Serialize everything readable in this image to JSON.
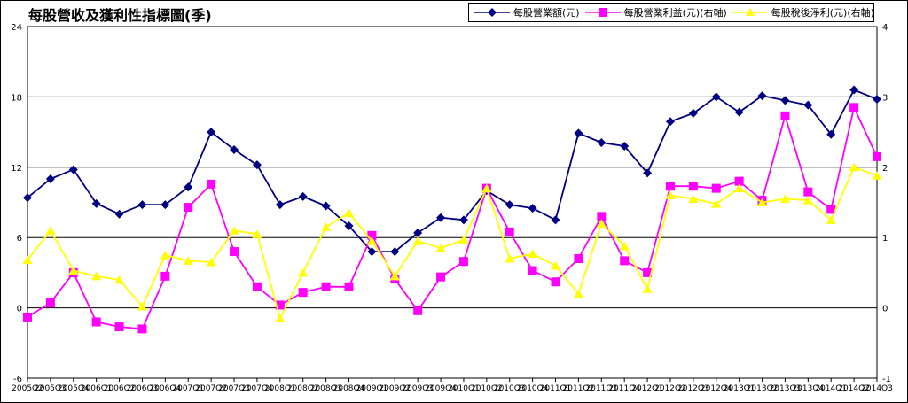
{
  "chart_data": {
    "type": "line",
    "title": "每股營收及獲利性指標圖(季)",
    "categories": [
      "2005Q2",
      "2005Q3",
      "2005Q4",
      "2006Q1",
      "2006Q2",
      "2006Q3",
      "2006Q4",
      "2007Q1",
      "2007Q2",
      "2007Q3",
      "2007Q4",
      "2008Q1",
      "2008Q2",
      "2008Q3",
      "2008Q4",
      "2009Q1",
      "2009Q2",
      "2009Q3",
      "2009Q4",
      "2010Q1",
      "2010Q2",
      "2010Q3",
      "2010Q4",
      "2011Q1",
      "2011Q2",
      "2011Q3",
      "2011Q4",
      "2012Q1",
      "2012Q2",
      "2012Q3",
      "2012Q4",
      "2013Q1",
      "2013Q2",
      "2013Q3",
      "2013Q4",
      "2014Q1",
      "2014Q2",
      "2014Q3"
    ],
    "left_axis": {
      "ylim": [
        -6,
        24
      ],
      "ticks": [
        "-6",
        "0",
        "6",
        "12",
        "18",
        "24"
      ]
    },
    "right_axis": {
      "ylim": [
        -1,
        4
      ],
      "ticks": [
        "-1",
        "0",
        "1",
        "2",
        "3",
        "4"
      ]
    },
    "grid": "horizontal",
    "legend_position": "top-right",
    "series": [
      {
        "name": "每股營業額(元)",
        "axis": "left",
        "color": "#000080",
        "marker": "diamond",
        "values": [
          9.4,
          11.0,
          11.8,
          8.9,
          8.0,
          8.8,
          8.8,
          10.3,
          15.0,
          13.5,
          12.2,
          8.8,
          9.5,
          8.7,
          7.0,
          4.8,
          4.8,
          6.4,
          7.7,
          7.5,
          10.0,
          8.8,
          8.5,
          7.5,
          14.9,
          14.1,
          13.8,
          11.5,
          15.9,
          16.6,
          18.0,
          16.7,
          18.1,
          17.7,
          17.3,
          14.8,
          18.6,
          17.8
        ]
      },
      {
        "name": "每股營業利益(元)(右軸)",
        "axis": "right",
        "color": "#FF00FF",
        "marker": "square",
        "values": [
          -0.13,
          0.07,
          0.5,
          -0.2,
          -0.27,
          -0.3,
          0.45,
          1.43,
          1.76,
          0.8,
          0.3,
          0.04,
          0.22,
          0.3,
          0.3,
          1.03,
          0.41,
          -0.04,
          0.44,
          0.66,
          1.7,
          1.08,
          0.53,
          0.37,
          0.7,
          1.3,
          0.67,
          0.5,
          1.73,
          1.73,
          1.7,
          1.8,
          1.53,
          2.73,
          1.65,
          1.4,
          2.85,
          2.15
        ]
      },
      {
        "name": "每股稅後淨利(元)(右軸)",
        "axis": "right",
        "color": "#FFFF00",
        "marker": "triangle",
        "values": [
          0.68,
          1.1,
          0.53,
          0.45,
          0.4,
          0.02,
          0.75,
          0.67,
          0.65,
          1.1,
          1.05,
          -0.15,
          0.5,
          1.15,
          1.35,
          0.95,
          0.45,
          0.95,
          0.85,
          0.97,
          1.7,
          0.7,
          0.77,
          0.6,
          0.2,
          1.2,
          0.88,
          0.27,
          1.6,
          1.55,
          1.48,
          1.7,
          1.5,
          1.55,
          1.53,
          1.25,
          2.0,
          1.88
        ]
      }
    ]
  }
}
